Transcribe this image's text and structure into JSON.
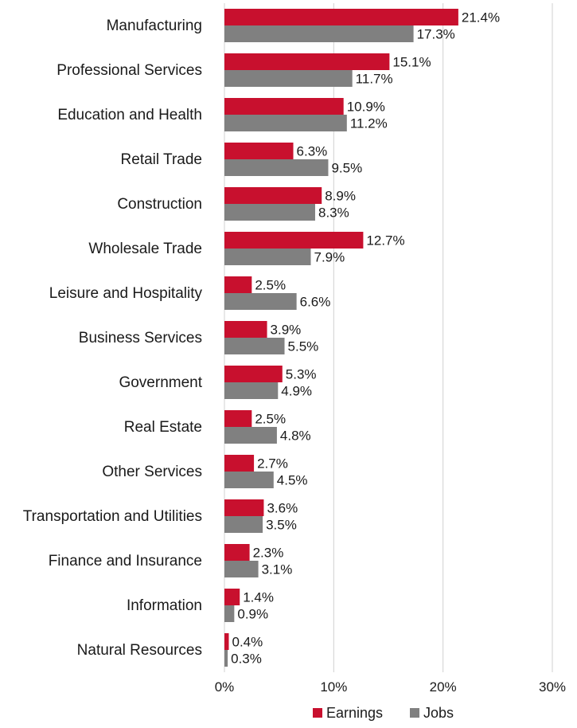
{
  "chart_data": {
    "type": "bar",
    "orientation": "horizontal",
    "categories": [
      "Manufacturing",
      "Professional Services",
      "Education and Health",
      "Retail Trade",
      "Construction",
      "Wholesale Trade",
      "Leisure and Hospitality",
      "Business Services",
      "Government",
      "Real Estate",
      "Other Services",
      "Transportation and Utilities",
      "Finance and Insurance",
      "Information",
      "Natural Resources"
    ],
    "series": [
      {
        "name": "Earnings",
        "color": "#c8102e",
        "values": [
          21.4,
          15.1,
          10.9,
          6.3,
          8.9,
          12.7,
          2.5,
          3.9,
          5.3,
          2.5,
          2.7,
          3.6,
          2.3,
          1.4,
          0.4
        ],
        "labels": [
          "21.4%",
          "15.1%",
          "10.9%",
          "6.3%",
          "8.9%",
          "12.7%",
          "2.5%",
          "3.9%",
          "5.3%",
          "2.5%",
          "2.7%",
          "3.6%",
          "2.3%",
          "1.4%",
          "0.4%"
        ]
      },
      {
        "name": "Jobs",
        "color": "#808080",
        "values": [
          17.3,
          11.7,
          11.2,
          9.5,
          8.3,
          7.9,
          6.6,
          5.5,
          4.9,
          4.8,
          4.5,
          3.5,
          3.1,
          0.9,
          0.3
        ],
        "labels": [
          "17.3%",
          "11.7%",
          "11.2%",
          "9.5%",
          "8.3%",
          "7.9%",
          "6.6%",
          "5.5%",
          "4.9%",
          "4.8%",
          "4.5%",
          "3.5%",
          "3.1%",
          "0.9%",
          "0.3%"
        ]
      }
    ],
    "xlim": [
      0,
      30
    ],
    "xticks": [
      0,
      10,
      20,
      30
    ],
    "xtick_labels": [
      "0%",
      "10%",
      "20%",
      "30%"
    ],
    "grid": "vertical",
    "legend_position": "bottom",
    "gridline_color": "#d0d0d0"
  }
}
